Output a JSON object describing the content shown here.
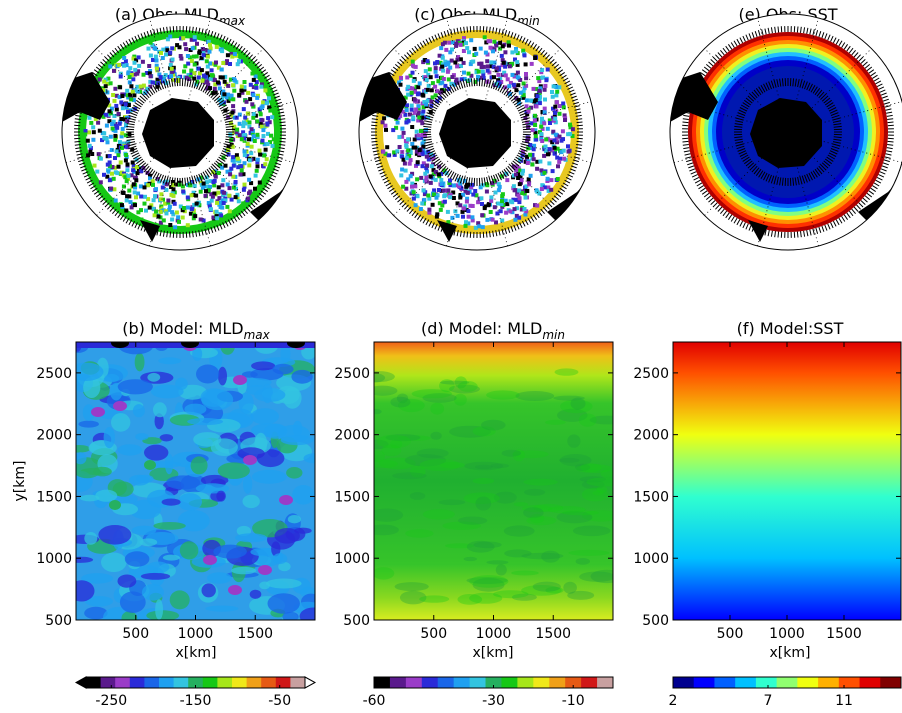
{
  "figure": {
    "panels": [
      {
        "id": "a",
        "label_prefix": "(a) Obs: MLD",
        "label_sub": "max",
        "kind": "polar-map",
        "field": "MLD max observations"
      },
      {
        "id": "c",
        "label_prefix": "(c) Obs: MLD",
        "label_sub": "min",
        "kind": "polar-map",
        "field": "MLD min observations"
      },
      {
        "id": "e",
        "label_prefix": "(e) Obs: SST",
        "label_sub": "",
        "kind": "polar-map",
        "field": "SST observations"
      },
      {
        "id": "b",
        "label_prefix": "(b) Model: MLD",
        "label_sub": "max",
        "kind": "model-field"
      },
      {
        "id": "d",
        "label_prefix": "(d) Model: MLD",
        "label_sub": "min",
        "kind": "model-field"
      },
      {
        "id": "f",
        "label_prefix": "(f) Model:SST",
        "label_sub": "",
        "kind": "model-field"
      }
    ],
    "xlabel": "x[km]",
    "ylabel": "y[km]"
  },
  "chart_data": [
    {
      "type": "heatmap",
      "title": "(b) Model: MLD max",
      "xlabel": "x[km]",
      "ylabel": "y[km]",
      "xlim": [
        0,
        2000
      ],
      "ylim": [
        500,
        2750
      ],
      "x_ticks": [
        500,
        1000,
        1500
      ],
      "y_ticks": [
        500,
        1000,
        1500,
        2000,
        2500
      ],
      "colorbar": {
        "min": -280,
        "max": -20,
        "extend": "both",
        "ticks": [
          -250,
          -150,
          -50
        ],
        "colors": [
          "#000000",
          "#5a1a8c",
          "#9a3cc8",
          "#2a2ad8",
          "#1a66e8",
          "#1fa0f0",
          "#33c4e0",
          "#26b060",
          "#16c816",
          "#a6e61a",
          "#f0e81a",
          "#f0a018",
          "#e65a14",
          "#d01818",
          "#c8a0a0"
        ]
      },
      "description_values": {
        "dominant_range": [
          -220,
          -160
        ]
      }
    },
    {
      "type": "heatmap",
      "title": "(d) Model: MLD min",
      "xlabel": "x[km]",
      "ylabel": "",
      "xlim": [
        0,
        2000
      ],
      "ylim": [
        500,
        2750
      ],
      "x_ticks": [
        500,
        1000,
        1500
      ],
      "y_ticks": [
        500,
        1000,
        1500,
        2000,
        2500
      ],
      "colorbar": {
        "min": -60,
        "max": 0,
        "extend": "neither",
        "ticks": [
          -60,
          -30,
          -10
        ],
        "colors": [
          "#000000",
          "#5a1a8c",
          "#9a3cc8",
          "#2a2ad8",
          "#1a66e8",
          "#1fa0f0",
          "#33c4e0",
          "#26b060",
          "#16c816",
          "#a6e61a",
          "#f0e81a",
          "#f0a018",
          "#e65a14",
          "#d01818",
          "#c8a0a0"
        ]
      }
    },
    {
      "type": "heatmap",
      "title": "(f) Model:SST",
      "xlabel": "x[km]",
      "ylabel": "",
      "xlim": [
        0,
        2000
      ],
      "ylim": [
        500,
        2750
      ],
      "x_ticks": [
        500,
        1000,
        1500
      ],
      "y_ticks": [
        500,
        1000,
        1500,
        2000,
        2500
      ],
      "colorbar": {
        "min": 2,
        "max": 14,
        "extend": "neither",
        "ticks": [
          2,
          7,
          11
        ],
        "colors": [
          "#00008f",
          "#0000ff",
          "#0060ff",
          "#00c0ff",
          "#30ffcf",
          "#90ff70",
          "#f0ff10",
          "#ffb000",
          "#ff5000",
          "#e00000",
          "#800000"
        ]
      },
      "y_at_value": [
        {
          "y": 500,
          "v": 3
        },
        {
          "y": 1000,
          "v": 5.5
        },
        {
          "y": 1500,
          "v": 7.2
        },
        {
          "y": 2000,
          "v": 9.3
        },
        {
          "y": 2500,
          "v": 11.5
        },
        {
          "y": 2750,
          "v": 12.5
        }
      ]
    }
  ]
}
